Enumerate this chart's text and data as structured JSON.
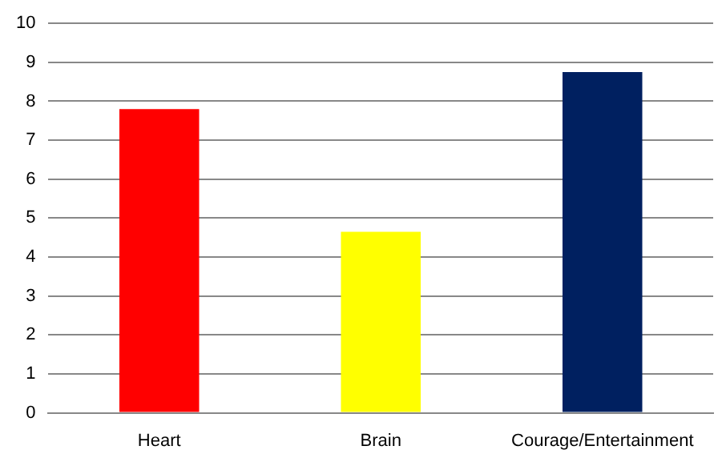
{
  "chart_data": {
    "type": "bar",
    "categories": [
      "Heart",
      "Brain",
      "Courage/Entertainment"
    ],
    "values": [
      7.8,
      4.65,
      8.75
    ],
    "colors": [
      "#ff0000",
      "#ffff00",
      "#002060"
    ],
    "ylim": [
      0,
      10
    ],
    "yticks": [
      0,
      1,
      2,
      3,
      4,
      5,
      6,
      7,
      8,
      9,
      10
    ],
    "grid": "y",
    "legend": false
  }
}
